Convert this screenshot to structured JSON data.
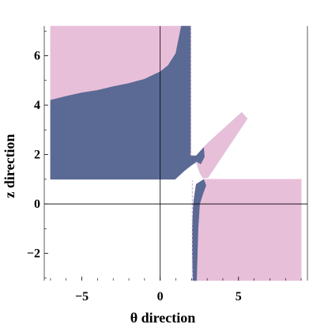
{
  "chart_data": {
    "type": "area",
    "title": "",
    "xlabel": "θ direction",
    "ylabel": "z direction",
    "xlim": [
      -7.4,
      9.4
    ],
    "ylim": [
      -3.1,
      7.2
    ],
    "x_ticks": [
      -5,
      0,
      5
    ],
    "y_ticks": [
      -2,
      0,
      2,
      4,
      6
    ],
    "x_tick_labels": [
      "−5",
      "0",
      "5"
    ],
    "y_tick_labels": [
      "−2",
      "0",
      "2",
      "4",
      "6"
    ],
    "grid": false,
    "colors": {
      "pink": "#e8bfd9",
      "blue": "#5a6a94",
      "axis": "#000000"
    },
    "regions": [
      {
        "color": "pink",
        "shape": "upper-left",
        "points": [
          [
            -7.0,
            7.2
          ],
          [
            -7.0,
            4.2
          ],
          [
            -6.0,
            4.36
          ],
          [
            -5.0,
            4.5
          ],
          [
            -4.0,
            4.6
          ],
          [
            -3.0,
            4.75
          ],
          [
            -2.0,
            4.88
          ],
          [
            -1.0,
            5.05
          ],
          [
            0.0,
            5.35
          ],
          [
            0.5,
            5.6
          ],
          [
            1.0,
            6.1
          ],
          [
            1.35,
            7.2
          ]
        ]
      },
      {
        "color": "blue",
        "shape": "upper-left",
        "points": [
          [
            -7.0,
            4.2
          ],
          [
            -6.0,
            4.36
          ],
          [
            -5.0,
            4.5
          ],
          [
            -4.0,
            4.6
          ],
          [
            -3.0,
            4.75
          ],
          [
            -2.0,
            4.88
          ],
          [
            -1.0,
            5.05
          ],
          [
            0.0,
            5.35
          ],
          [
            0.5,
            5.6
          ],
          [
            1.0,
            6.1
          ],
          [
            1.35,
            7.2
          ],
          [
            1.95,
            7.2
          ],
          [
            1.95,
            1.95
          ],
          [
            2.3,
            1.95
          ],
          [
            2.8,
            2.3
          ],
          [
            3.2,
            2.55
          ],
          [
            5.2,
            3.7
          ],
          [
            5.55,
            3.45
          ],
          [
            3.05,
            1.08
          ],
          [
            2.75,
            1.05
          ],
          [
            2.55,
            1.25
          ],
          [
            2.3,
            1.7
          ],
          [
            1.95,
            1.55
          ],
          [
            1.55,
            1.35
          ],
          [
            1.2,
            1.15
          ],
          [
            0.95,
            1.0
          ],
          [
            0.45,
            1.0
          ],
          [
            0.15,
            1.0
          ],
          [
            0.0,
            1.0
          ],
          [
            -7.0,
            1.0
          ]
        ]
      },
      {
        "color": "pink",
        "shape": "diagonal-band",
        "points": [
          [
            2.3,
            1.7
          ],
          [
            2.55,
            1.25
          ],
          [
            2.75,
            1.05
          ],
          [
            3.05,
            1.08
          ],
          [
            5.55,
            3.45
          ],
          [
            5.2,
            3.7
          ],
          [
            3.2,
            2.55
          ],
          [
            2.8,
            2.3
          ],
          [
            2.85,
            1.9
          ],
          [
            2.6,
            1.6
          ]
        ]
      },
      {
        "color": "blue",
        "shape": "lower-right",
        "points": [
          [
            2.1,
            -3.1
          ],
          [
            2.05,
            -2.0
          ],
          [
            2.05,
            -1.0
          ],
          [
            2.12,
            0.0
          ],
          [
            2.2,
            0.4
          ],
          [
            2.3,
            0.8
          ],
          [
            2.8,
            1.0
          ],
          [
            2.95,
            0.75
          ],
          [
            2.75,
            0.4
          ],
          [
            2.55,
            0.0
          ],
          [
            2.45,
            -1.0
          ],
          [
            2.4,
            -2.0
          ],
          [
            2.35,
            -3.1
          ]
        ]
      },
      {
        "color": "pink",
        "shape": "lower-right",
        "points": [
          [
            2.35,
            -3.1
          ],
          [
            2.4,
            -2.0
          ],
          [
            2.45,
            -1.0
          ],
          [
            2.55,
            0.0
          ],
          [
            2.75,
            0.4
          ],
          [
            2.95,
            0.75
          ],
          [
            2.8,
            1.0
          ],
          [
            9.0,
            1.0
          ],
          [
            9.0,
            -3.1
          ]
        ]
      }
    ],
    "dashed_lines": [
      {
        "points": [
          [
            1.95,
            7.2
          ],
          [
            1.95,
            1.95
          ]
        ]
      },
      {
        "points": [
          [
            2.05,
            -3.1
          ],
          [
            2.05,
            0.95
          ]
        ]
      }
    ]
  }
}
